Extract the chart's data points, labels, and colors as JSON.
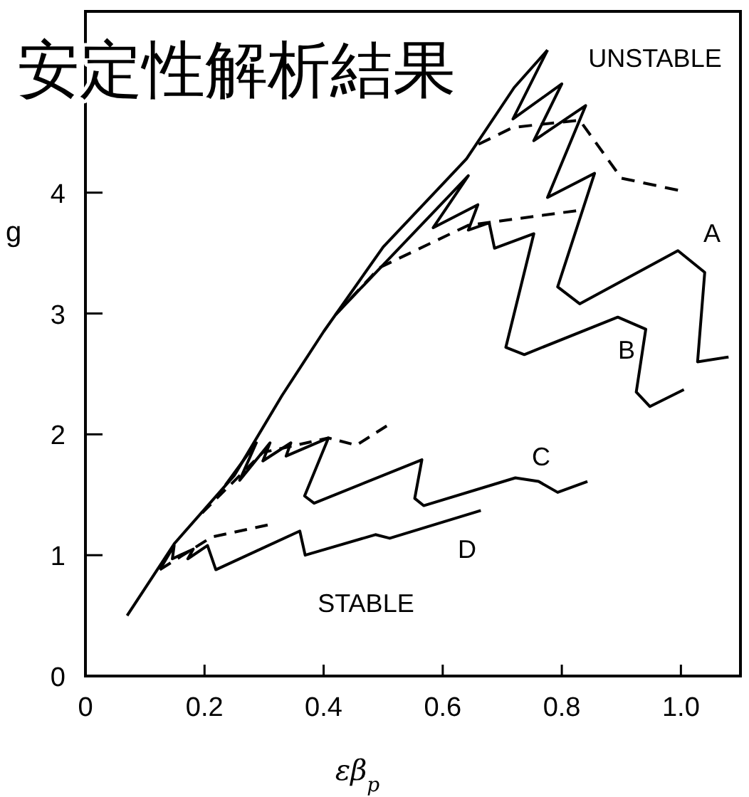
{
  "chart_data": {
    "type": "line",
    "title": "安定性解析結果",
    "xlabel": "εβ$_{p}$",
    "ylabel": "g",
    "xlim": [
      0,
      1.1
    ],
    "ylim": [
      0,
      5.5
    ],
    "xticks": [
      0,
      0.2,
      0.4,
      0.6,
      0.8,
      {
        "value": 1,
        "label": "1.0"
      }
    ],
    "yticks": [
      0,
      1,
      2,
      3,
      4
    ],
    "grid": false,
    "marker": "none",
    "series": [
      {
        "color": "#000000",
        "line_style": "solid",
        "x": [
          0.07,
          0.15,
          0.25,
          0.33,
          0.4,
          0.5,
          0.64,
          0.72,
          0.776
        ],
        "values": [
          0.5,
          1.1,
          1.66,
          2.32,
          2.85,
          3.55,
          4.28,
          4.87,
          5.18
        ]
      },
      {
        "color": "#000000",
        "line_style": "solid",
        "x": [
          0.776,
          0.718,
          0.8,
          0.753,
          0.84,
          0.776,
          0.855,
          0.793,
          0.83,
          0.995,
          1.04,
          1.028,
          1.08
        ],
        "values": [
          5.18,
          4.61,
          4.9,
          4.43,
          4.72,
          3.96,
          4.16,
          3.22,
          3.08,
          3.52,
          3.34,
          2.6,
          2.64
        ]
      },
      {
        "color": "#000000",
        "line_style": "dashed",
        "x": [
          0.66,
          0.718,
          0.83,
          0.9,
          0.995
        ],
        "values": [
          4.4,
          4.54,
          4.6,
          4.12,
          4.02
        ]
      },
      {
        "color": "#000000",
        "line_style": "solid",
        "x": [
          0.42,
          0.643,
          0.584,
          0.659,
          0.643,
          0.678,
          0.687,
          0.753,
          0.706,
          0.737,
          0.894,
          0.941,
          0.925,
          0.948,
          1.005
        ],
        "values": [
          2.99,
          4.14,
          3.71,
          3.9,
          3.69,
          3.75,
          3.54,
          3.66,
          2.72,
          2.66,
          2.97,
          2.87,
          2.35,
          2.23,
          2.37
        ]
      },
      {
        "color": "#000000",
        "line_style": "dashed",
        "x": [
          0.42,
          0.494,
          0.643,
          0.824
        ],
        "values": [
          2.99,
          3.38,
          3.73,
          3.85
        ]
      },
      {
        "color": "#000000",
        "line_style": "solid",
        "x": [
          0.235,
          0.287,
          0.259,
          0.31,
          0.298,
          0.345,
          0.337,
          0.408,
          0.368,
          0.384,
          0.565,
          0.553,
          0.568,
          0.722,
          0.761,
          0.793,
          0.843
        ],
        "values": [
          1.58,
          1.93,
          1.62,
          1.93,
          1.78,
          1.93,
          1.82,
          1.97,
          1.49,
          1.43,
          1.79,
          1.47,
          1.41,
          1.64,
          1.61,
          1.52,
          1.61
        ]
      },
      {
        "color": "#000000",
        "line_style": "dashed",
        "x": [
          0.196,
          0.298,
          0.408,
          0.455,
          0.506
        ],
        "values": [
          1.35,
          1.85,
          1.97,
          1.91,
          2.07
        ]
      },
      {
        "color": "#000000",
        "line_style": "solid",
        "x": [
          0.125,
          0.149,
          0.146,
          0.181,
          0.172,
          0.205,
          0.219,
          0.36,
          0.369,
          0.487,
          0.511,
          0.664
        ],
        "values": [
          0.88,
          1.08,
          0.97,
          1.05,
          0.97,
          1.08,
          0.88,
          1.2,
          1.0,
          1.17,
          1.14,
          1.37
        ]
      },
      {
        "color": "#000000",
        "line_style": "dashed",
        "x": [
          0.125,
          0.212,
          0.306
        ],
        "values": [
          0.88,
          1.15,
          1.25
        ]
      }
    ],
    "annotations": [
      "UNSTABLE",
      "A",
      "B",
      "C",
      "D",
      "STABLE"
    ]
  }
}
